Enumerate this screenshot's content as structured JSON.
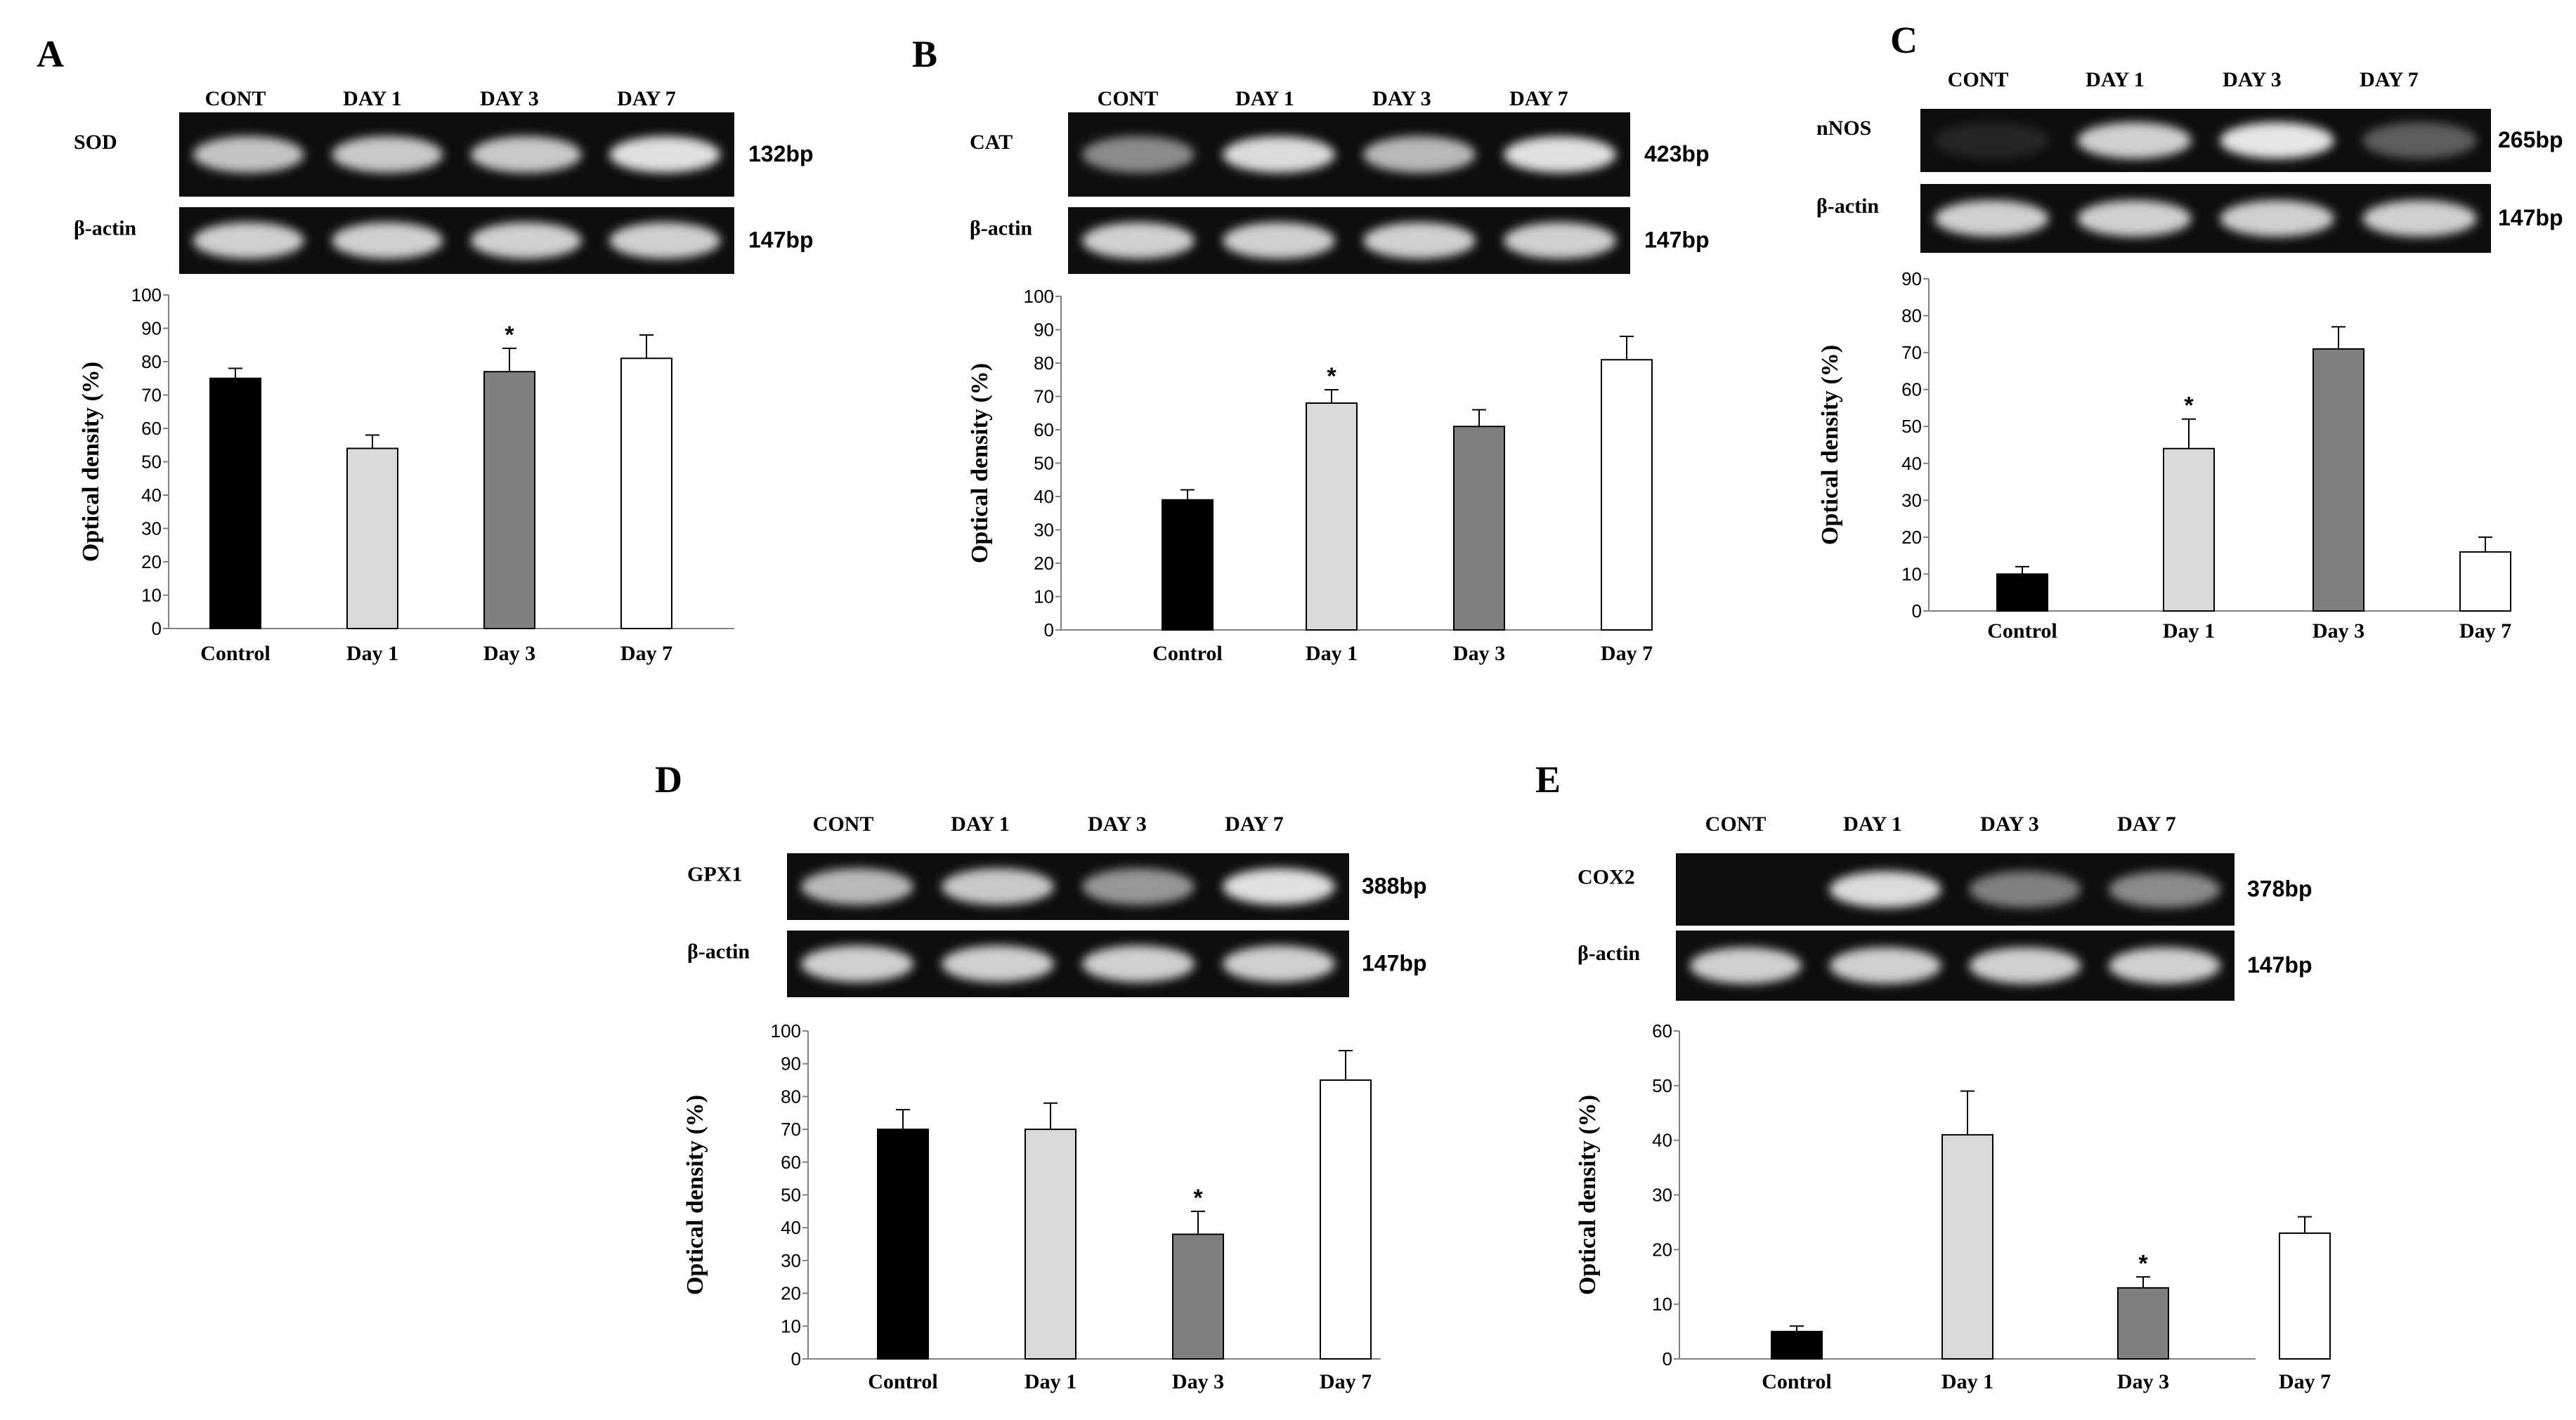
{
  "colors": {
    "Control": "#000000",
    "Day 1": "#d9d9d9",
    "Day 3": "#7f7f7f",
    "Day 7": "#ffffff",
    "gel_background": "#0e0e0e",
    "band": "#f2f2f2"
  },
  "panels": [
    {
      "letter": "A",
      "lane_labels": [
        "CONT",
        "DAY 1",
        "DAY 3",
        "DAY 7"
      ],
      "gels": [
        {
          "label": "SOD",
          "size": "132bp",
          "bands": [
            0.8,
            0.82,
            0.82,
            0.92
          ]
        },
        {
          "label": "β-actin",
          "size": "147bp",
          "bands": [
            0.85,
            0.85,
            0.85,
            0.85
          ]
        }
      ]
    },
    {
      "letter": "B",
      "lane_labels": [
        "CONT",
        "DAY 1",
        "DAY 3",
        "DAY 7"
      ],
      "gels": [
        {
          "label": "CAT",
          "size": "423bp",
          "bands": [
            0.55,
            0.9,
            0.75,
            0.92
          ]
        },
        {
          "label": "β-actin",
          "size": "147bp",
          "bands": [
            0.85,
            0.85,
            0.85,
            0.85
          ]
        }
      ]
    },
    {
      "letter": "C",
      "lane_labels": [
        "CONT",
        "DAY 1",
        "DAY 3",
        "DAY 7"
      ],
      "gels": [
        {
          "label": "nNOS",
          "size": "265bp",
          "bands": [
            0.1,
            0.85,
            0.95,
            0.35
          ]
        },
        {
          "label": "β-actin",
          "size": "147bp",
          "bands": [
            0.85,
            0.85,
            0.85,
            0.85
          ]
        }
      ]
    },
    {
      "letter": "D",
      "lane_labels": [
        "CONT",
        "DAY 1",
        "DAY 3",
        "DAY 7"
      ],
      "gels": [
        {
          "label": "GPX1",
          "size": "388bp",
          "bands": [
            0.75,
            0.82,
            0.6,
            0.92
          ]
        },
        {
          "label": "β-actin",
          "size": "147bp",
          "bands": [
            0.85,
            0.85,
            0.85,
            0.85
          ]
        }
      ]
    },
    {
      "letter": "E",
      "lane_labels": [
        "CONT",
        "DAY 1",
        "DAY 3",
        "DAY 7"
      ],
      "gels": [
        {
          "label": "COX2",
          "size": "378bp",
          "bands": [
            0.0,
            0.9,
            0.5,
            0.55
          ]
        },
        {
          "label": "β-actin",
          "size": "147bp",
          "bands": [
            0.85,
            0.85,
            0.85,
            0.85
          ]
        }
      ]
    }
  ],
  "chart_data": [
    {
      "panel": "A",
      "type": "bar",
      "categories": [
        "Control",
        "Day 1",
        "Day 3",
        "Day 7"
      ],
      "values": [
        75,
        54,
        77,
        81
      ],
      "errors": [
        3,
        4,
        7,
        7
      ],
      "significant": [
        false,
        false,
        true,
        false
      ],
      "significance_marker": "*",
      "ylabel": "Optical density (%)",
      "ylim": [
        0,
        100
      ],
      "yticks": [
        0,
        10,
        20,
        30,
        40,
        50,
        60,
        70,
        80,
        90,
        100
      ],
      "grid": false
    },
    {
      "panel": "B",
      "type": "bar",
      "categories": [
        "Control",
        "Day 1",
        "Day 3",
        "Day 7"
      ],
      "values": [
        39,
        68,
        61,
        81
      ],
      "errors": [
        3,
        4,
        5,
        7
      ],
      "significant": [
        false,
        true,
        false,
        false
      ],
      "significance_marker": "*",
      "ylabel": "Optical density (%)",
      "ylim": [
        0,
        100
      ],
      "yticks": [
        0,
        10,
        20,
        30,
        40,
        50,
        60,
        70,
        80,
        90,
        100
      ],
      "grid": false
    },
    {
      "panel": "C",
      "type": "bar",
      "categories": [
        "Control",
        "Day 1",
        "Day 3",
        "Day 7"
      ],
      "values": [
        10,
        44,
        71,
        16
      ],
      "errors": [
        2,
        8,
        6,
        4
      ],
      "significant": [
        false,
        true,
        false,
        false
      ],
      "significance_marker": "*",
      "ylabel": "Optical density (%)",
      "ylim": [
        0,
        90
      ],
      "yticks": [
        0,
        10,
        20,
        30,
        40,
        50,
        60,
        70,
        80,
        90
      ],
      "grid": false
    },
    {
      "panel": "D",
      "type": "bar",
      "categories": [
        "Control",
        "Day 1",
        "Day 3",
        "Day 7"
      ],
      "values": [
        70,
        70,
        38,
        85
      ],
      "errors": [
        6,
        8,
        7,
        9
      ],
      "significant": [
        false,
        false,
        true,
        false
      ],
      "significance_marker": "*",
      "ylabel": "Optical density (%)",
      "ylim": [
        0,
        100
      ],
      "yticks": [
        0,
        10,
        20,
        30,
        40,
        50,
        60,
        70,
        80,
        90,
        100
      ],
      "grid": false
    },
    {
      "panel": "E",
      "type": "bar",
      "categories": [
        "Control",
        "Day 1",
        "Day 3",
        "Day 7"
      ],
      "values": [
        5,
        41,
        13,
        23
      ],
      "errors": [
        1,
        8,
        2,
        3
      ],
      "significant": [
        false,
        false,
        true,
        false
      ],
      "significance_marker": "*",
      "ylabel": "Optical density (%)",
      "ylim": [
        0,
        60
      ],
      "yticks": [
        0,
        10,
        20,
        30,
        40,
        50,
        60
      ],
      "grid": false
    }
  ]
}
